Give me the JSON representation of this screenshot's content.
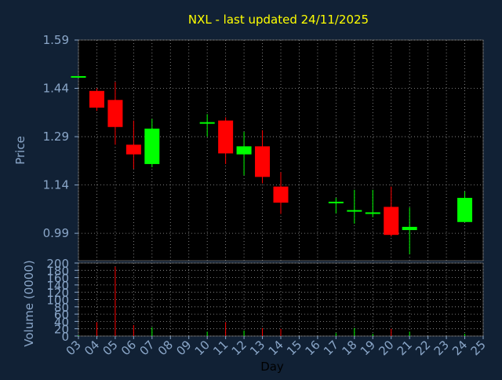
{
  "title": "NXL - last updated 24/11/2025",
  "colors": {
    "background": "#112135",
    "plot_background": "#000000",
    "axis_text": "#8aa6c8",
    "title": "#ffff00",
    "grid": "#9a9a9a",
    "up": "#00ff00",
    "down": "#ff0000"
  },
  "chart_data": [
    {
      "type": "candlestick",
      "ylabel": "Price",
      "ylim": [
        0.905,
        1.59
      ],
      "y_ticks": [
        "1.59",
        "1.44",
        "1.29",
        "1.14",
        "0.99"
      ],
      "y_tick_values": [
        1.59,
        1.44,
        1.29,
        1.14,
        0.99
      ],
      "grid": true,
      "series": [
        {
          "day": "03",
          "open": 1.478,
          "high": 1.478,
          "low": 1.478,
          "close": 1.478
        },
        {
          "day": "04",
          "open": 1.432,
          "high": 1.44,
          "low": 1.37,
          "close": 1.38
        },
        {
          "day": "05",
          "open": 1.404,
          "high": 1.46,
          "low": 1.265,
          "close": 1.32
        },
        {
          "day": "06",
          "open": 1.265,
          "high": 1.34,
          "low": 1.19,
          "close": 1.235
        },
        {
          "day": "07",
          "open": 1.205,
          "high": 1.345,
          "low": 1.195,
          "close": 1.315
        },
        {
          "day": "10",
          "open": 1.335,
          "high": 1.36,
          "low": 1.29,
          "close": 1.335
        },
        {
          "day": "11",
          "open": 1.34,
          "high": 1.35,
          "low": 1.205,
          "close": 1.238
        },
        {
          "day": "12",
          "open": 1.235,
          "high": 1.305,
          "low": 1.17,
          "close": 1.26
        },
        {
          "day": "13",
          "open": 1.26,
          "high": 1.31,
          "low": 1.145,
          "close": 1.165
        },
        {
          "day": "14",
          "open": 1.135,
          "high": 1.18,
          "low": 1.05,
          "close": 1.085
        },
        {
          "day": "17",
          "open": 1.088,
          "high": 1.1,
          "low": 1.052,
          "close": 1.088
        },
        {
          "day": "18",
          "open": 1.062,
          "high": 1.125,
          "low": 1.02,
          "close": 1.062
        },
        {
          "day": "19",
          "open": 1.055,
          "high": 1.125,
          "low": 1.04,
          "close": 1.055
        },
        {
          "day": "20",
          "open": 1.072,
          "high": 1.135,
          "low": 0.98,
          "close": 0.985
        },
        {
          "day": "21",
          "open": 1.0,
          "high": 1.07,
          "low": 0.925,
          "close": 1.01
        },
        {
          "day": "24",
          "open": 1.025,
          "high": 1.12,
          "low": 1.025,
          "close": 1.1
        }
      ]
    },
    {
      "type": "bar",
      "ylabel": "Volume (0000)",
      "xlabel": "Day",
      "ylim": [
        0,
        200
      ],
      "y_ticks": [
        "200",
        "180",
        "160",
        "140",
        "120",
        "100",
        "80",
        "60",
        "40",
        "20",
        "0"
      ],
      "y_tick_values": [
        200,
        180,
        160,
        140,
        120,
        100,
        80,
        60,
        40,
        20,
        0
      ],
      "categories": [
        "03",
        "04",
        "05",
        "06",
        "07",
        "10",
        "11",
        "12",
        "13",
        "14",
        "17",
        "18",
        "19",
        "20",
        "21",
        "24"
      ],
      "values": [
        2,
        38,
        190,
        30,
        24,
        12,
        38,
        15,
        22,
        20,
        8,
        22,
        6,
        20,
        12,
        6
      ],
      "up_flags": [
        true,
        false,
        false,
        false,
        true,
        true,
        false,
        true,
        false,
        false,
        true,
        true,
        true,
        false,
        true,
        true
      ],
      "x_ticks": [
        "03",
        "04",
        "05",
        "06",
        "07",
        "08",
        "09",
        "10",
        "11",
        "12",
        "13",
        "14",
        "15",
        "16",
        "17",
        "18",
        "19",
        "20",
        "21",
        "22",
        "23",
        "24",
        "25"
      ],
      "grid": true
    }
  ]
}
